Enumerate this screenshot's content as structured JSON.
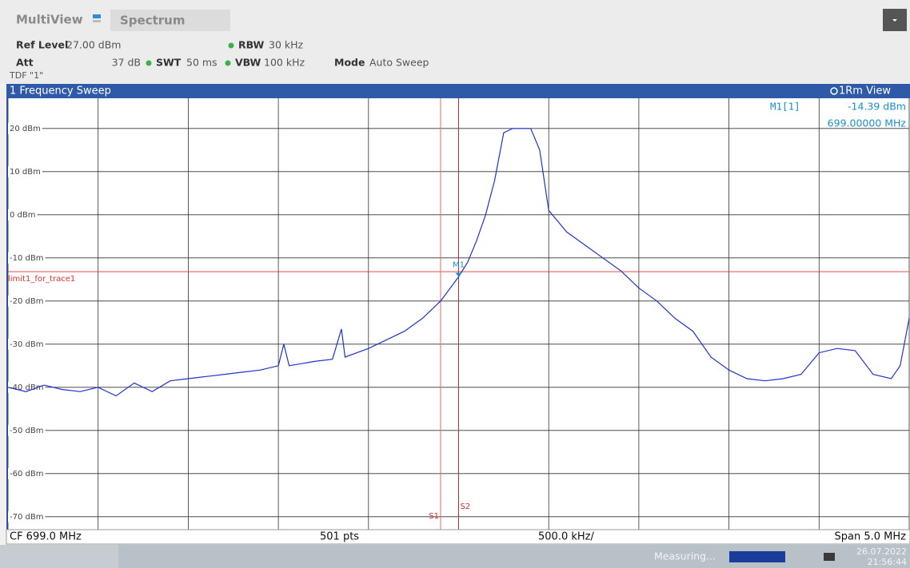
{
  "header": {
    "app": "MultiView",
    "tab": "Spectrum",
    "ref_level_label": "Ref Level",
    "ref_level": "27.00 dBm",
    "att_label": "Att",
    "att": "37 dB",
    "swt_label": "SWT",
    "swt": "50 ms",
    "rbw_label": "RBW",
    "rbw": "30 kHz",
    "vbw_label": "VBW",
    "vbw": "100 kHz",
    "mode_label": "Mode",
    "mode": "Auto Sweep",
    "tdf": "TDF \"1\""
  },
  "window": {
    "title": "1 Frequency Sweep",
    "view": "1Rm View"
  },
  "chart_data": {
    "type": "line",
    "x": [
      696.5,
      696.6,
      696.7,
      696.8,
      696.9,
      697.0,
      697.1,
      697.2,
      697.3,
      697.4,
      697.5,
      697.6,
      697.7,
      697.8,
      697.9,
      698.0,
      698.03,
      698.06,
      698.2,
      698.3,
      698.35,
      698.37,
      698.5,
      698.6,
      698.7,
      698.8,
      698.9,
      699.0,
      699.05,
      699.1,
      699.15,
      699.2,
      699.25,
      699.3,
      699.4,
      699.45,
      699.5,
      699.6,
      699.7,
      699.8,
      699.9,
      700.0,
      700.1,
      700.2,
      700.3,
      700.4,
      700.5,
      700.6,
      700.7,
      700.8,
      700.9,
      701.0,
      701.1,
      701.2,
      701.3,
      701.4,
      701.45,
      701.5
    ],
    "series": [
      {
        "color": "#2233cc",
        "values": [
          -40,
          -41,
          -39.5,
          -40.5,
          -41,
          -40,
          -42,
          -39,
          -41,
          -38.5,
          -38,
          -37.5,
          -37,
          -36.5,
          -36,
          -35,
          -30,
          -35,
          -34,
          -33.5,
          -26.5,
          -33,
          -31,
          -29,
          -27,
          -24,
          -20,
          -14.39,
          -11,
          -6,
          0,
          8,
          19,
          20,
          20,
          15,
          1,
          -4,
          -7,
          -10,
          -13,
          -17,
          -20,
          -24,
          -27,
          -33,
          -36,
          -38,
          -38.5,
          -38,
          -37,
          -32,
          -31,
          -31.5,
          -37,
          -38,
          -35,
          -24
        ]
      }
    ],
    "xlim": [
      696.5,
      701.5
    ],
    "ylim": [
      -73,
      27
    ],
    "xticks": [
      696.5,
      697.0,
      697.5,
      698.0,
      698.5,
      699.0,
      699.5,
      700.0,
      700.5,
      701.0,
      701.5
    ],
    "yticks": [
      {
        "value": 20,
        "label": "20 dBm"
      },
      {
        "value": 10,
        "label": "10 dBm"
      },
      {
        "value": 0,
        "label": "0 dBm"
      },
      {
        "value": -10,
        "label": "-10 dBm"
      },
      {
        "value": -20,
        "label": "-20 dBm"
      },
      {
        "value": -30,
        "label": "-30 dBm"
      },
      {
        "value": -40,
        "label": "-40 dBm"
      },
      {
        "value": -50,
        "label": "-50 dBm"
      },
      {
        "value": -60,
        "label": "-60 dBm"
      },
      {
        "value": -70,
        "label": "-70 dBm"
      }
    ],
    "grid": true,
    "limit_line": {
      "label": "limit1_for_trace1",
      "value": -13.2,
      "color": "#e03030"
    },
    "search_lines": [
      {
        "label": "S1",
        "value": 698.9
      },
      {
        "label": "S2",
        "value": 699.0
      }
    ],
    "marker": {
      "label": "M1",
      "x": 699.0,
      "y": -14.39,
      "readout_name": "M1[1]",
      "readout_value": "-14.39 dBm",
      "readout_freq": "699.00000 MHz"
    }
  },
  "footer": {
    "center_freq": "CF 699.0 MHz",
    "points": "501 pts",
    "per_div": "500.0 kHz/",
    "span": "Span 5.0 MHz"
  },
  "status": {
    "state": "Measuring...",
    "date": "26.07.2022",
    "time": "21:56:44"
  }
}
